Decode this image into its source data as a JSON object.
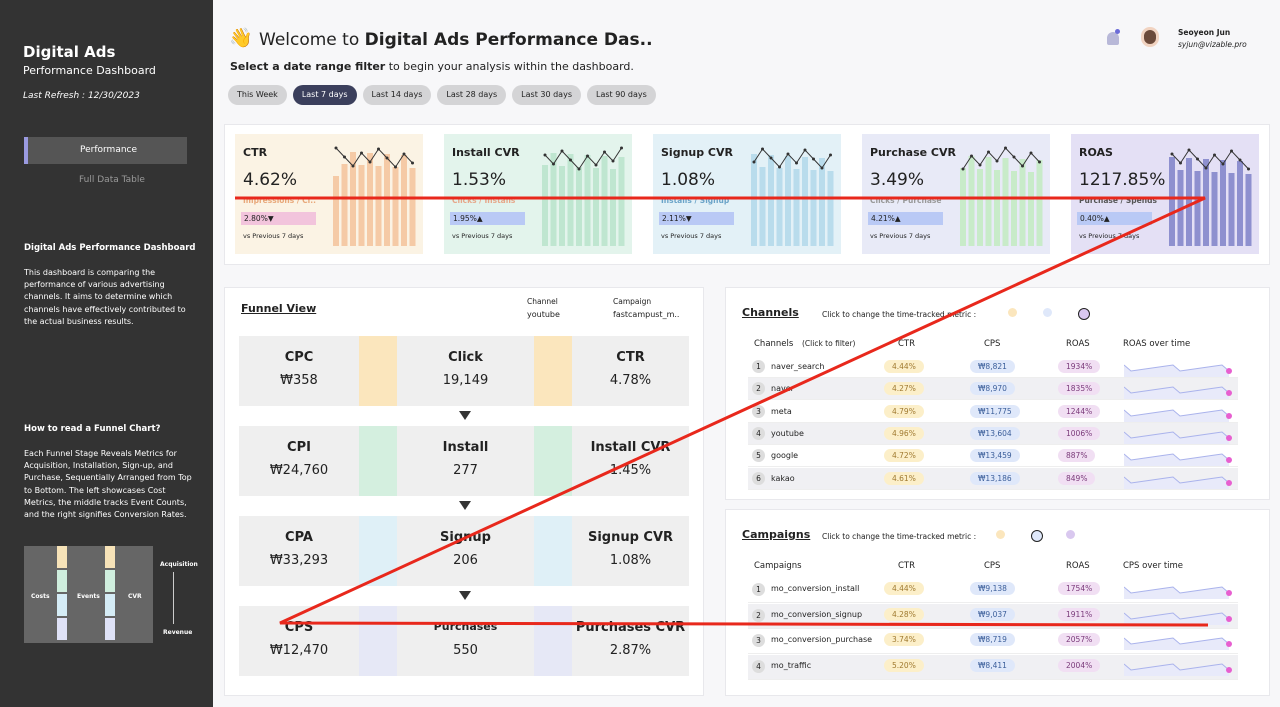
{
  "sidebar": {
    "title": "Digital Ads",
    "subtitle": "Performance Dashboard",
    "refresh": "Last Refresh :  12/30/2023",
    "nav": [
      "Performance",
      "Full Data Table"
    ],
    "about_title": "Digital Ads Performance Dashboard",
    "about_text": "This dashboard is comparing the performance of various advertising channels. It aims to determine which channels have effectively contributed to the actual business results.",
    "howto_title": "How to read a Funnel Chart?",
    "howto_text": "Each Funnel Stage Reveals Metrics for Acquisition, Installation, Sign-up, and Purchase, Sequentially Arranged from Top to Bottom. The left showcases Cost Metrics, the middle tracks Event Counts, and the right signifies Conversion Rates.",
    "mini_labels": [
      "Costs",
      "Events",
      "CVR",
      "Acquisition",
      "Revenue"
    ]
  },
  "header": {
    "greeting": "Welcome to",
    "title": "Digital Ads Performance Das..",
    "filter_bold": "Select a date range filter",
    "filter_rest": "to begin your analysis within the dashboard.",
    "date_buttons": [
      "This Week",
      "Last 7 days",
      "Last 14 days",
      "Last 28 days",
      "Last 30 days",
      "Last 90 days"
    ],
    "user_name": "Seoyeon Jun",
    "user_email": "syjun@vizable.pro"
  },
  "kpis": [
    {
      "label": "CTR",
      "value": "4.62%",
      "formula": "Impressions / Cl..",
      "change": "2.80%▼",
      "compare": "vs Previous 7 days"
    },
    {
      "label": "Install CVR",
      "value": "1.53%",
      "formula": "Clicks / Installs",
      "change": "1.95%▲",
      "compare": "vs Previous 7 days"
    },
    {
      "label": "Signup CVR",
      "value": "1.08%",
      "formula": "Installs / Signup",
      "change": "2.11%▼",
      "compare": "vs Previous 7 days"
    },
    {
      "label": "Purchase CVR",
      "value": "3.49%",
      "formula": "Clicks / Purchase",
      "change": "4.21%▲",
      "compare": "vs Previous 7 days"
    },
    {
      "label": "ROAS",
      "value": "1217.85%",
      "formula": "Purchase / Spends",
      "change": "0.40%▲",
      "compare": "vs Previous 7 days"
    }
  ],
  "funnel": {
    "title": "Funnel View",
    "filters": [
      {
        "label": "Channel",
        "value": "youtube"
      },
      {
        "label": "Campaign",
        "value": "fastcampust_m.."
      }
    ],
    "rows": [
      [
        {
          "label": "CPC",
          "value": "₩358"
        },
        {
          "label": "Click",
          "value": "19,149"
        },
        {
          "label": "CTR",
          "value": "4.78%"
        }
      ],
      [
        {
          "label": "CPI",
          "value": "₩24,760"
        },
        {
          "label": "Install",
          "value": "277"
        },
        {
          "label": "Install CVR",
          "value": "1.45%"
        }
      ],
      [
        {
          "label": "CPA",
          "value": "₩33,293"
        },
        {
          "label": "Signup",
          "value": "206"
        },
        {
          "label": "Signup CVR",
          "value": "1.08%"
        }
      ],
      [
        {
          "label": "CPS",
          "value": "₩12,470"
        },
        {
          "label": "Purchases",
          "value": "550"
        },
        {
          "label": "Purchases CVR",
          "value": "2.87%"
        }
      ]
    ]
  },
  "channels": {
    "title": "Channels",
    "hint": "Click to change the time-tracked metric :",
    "columns": [
      "Channels",
      "(Click to filter)",
      "CTR",
      "CPS",
      "ROAS",
      "ROAS over time"
    ],
    "rows": [
      {
        "rank": "1",
        "name": "naver_search",
        "ctr": "4.44%",
        "cps": "₩8,821",
        "roas": "1934%"
      },
      {
        "rank": "2",
        "name": "naver",
        "ctr": "4.27%",
        "cps": "₩8,970",
        "roas": "1835%"
      },
      {
        "rank": "3",
        "name": "meta",
        "ctr": "4.79%",
        "cps": "₩11,775",
        "roas": "1244%"
      },
      {
        "rank": "4",
        "name": "youtube",
        "ctr": "4.96%",
        "cps": "₩13,604",
        "roas": "1006%"
      },
      {
        "rank": "5",
        "name": "google",
        "ctr": "4.72%",
        "cps": "₩13,459",
        "roas": "887%"
      },
      {
        "rank": "6",
        "name": "kakao",
        "ctr": "4.61%",
        "cps": "₩13,186",
        "roas": "849%"
      }
    ]
  },
  "campaigns": {
    "title": "Campaigns",
    "hint": "Click to change the time-tracked metric :",
    "columns": [
      "Campaigns",
      "CTR",
      "CPS",
      "ROAS",
      "CPS over time"
    ],
    "rows": [
      {
        "rank": "1",
        "name": "mo_conversion_install",
        "ctr": "4.44%",
        "cps": "₩9,138",
        "roas": "1754%"
      },
      {
        "rank": "2",
        "name": "mo_conversion_signup",
        "ctr": "4.28%",
        "cps": "₩9,037",
        "roas": "1911%"
      },
      {
        "rank": "3",
        "name": "mo_conversion_purchase",
        "ctr": "3.74%",
        "cps": "₩8,719",
        "roas": "2057%"
      },
      {
        "rank": "4",
        "name": "mo_traffic",
        "ctr": "5.20%",
        "cps": "₩8,411",
        "roas": "2004%"
      }
    ]
  }
}
